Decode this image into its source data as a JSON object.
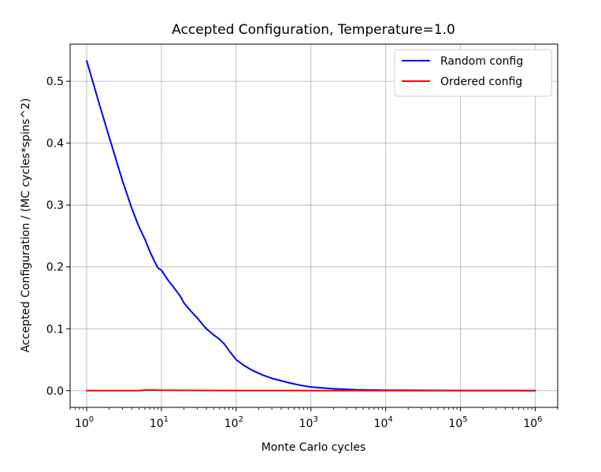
{
  "chart_data": {
    "type": "line",
    "title": "Accepted Configuration, Temperature=1.0",
    "xlabel": "Monte Carlo cycles",
    "ylabel": "Accepted Configuration / (MC cycles*spins^2)",
    "xscale": "log",
    "xlim": [
      0.6,
      2000000
    ],
    "ylim": [
      -0.027,
      0.56
    ],
    "xticks": [
      {
        "value": 1,
        "base": "10",
        "exp": "0"
      },
      {
        "value": 10,
        "base": "10",
        "exp": "1"
      },
      {
        "value": 100,
        "base": "10",
        "exp": "2"
      },
      {
        "value": 1000,
        "base": "10",
        "exp": "3"
      },
      {
        "value": 10000,
        "base": "10",
        "exp": "4"
      },
      {
        "value": 100000,
        "base": "10",
        "exp": "5"
      },
      {
        "value": 1000000,
        "base": "10",
        "exp": "6"
      }
    ],
    "yticks": [
      {
        "value": 0.0,
        "label": "0.0"
      },
      {
        "value": 0.1,
        "label": "0.1"
      },
      {
        "value": 0.2,
        "label": "0.2"
      },
      {
        "value": 0.3,
        "label": "0.3"
      },
      {
        "value": 0.4,
        "label": "0.4"
      },
      {
        "value": 0.5,
        "label": "0.5"
      }
    ],
    "grid": true,
    "legend_position": "top-right",
    "series": [
      {
        "name": "Random config",
        "color": "#0000ff",
        "points": [
          [
            1,
            0.533
          ],
          [
            1.5,
            0.46
          ],
          [
            2,
            0.41
          ],
          [
            3,
            0.34
          ],
          [
            4,
            0.295
          ],
          [
            5,
            0.265
          ],
          [
            6,
            0.245
          ],
          [
            7,
            0.225
          ],
          [
            8,
            0.21
          ],
          [
            9,
            0.198
          ],
          [
            10,
            0.195
          ],
          [
            12,
            0.18
          ],
          [
            15,
            0.165
          ],
          [
            18,
            0.152
          ],
          [
            20,
            0.142
          ],
          [
            25,
            0.128
          ],
          [
            30,
            0.118
          ],
          [
            35,
            0.108
          ],
          [
            40,
            0.1
          ],
          [
            50,
            0.09
          ],
          [
            60,
            0.083
          ],
          [
            70,
            0.075
          ],
          [
            80,
            0.065
          ],
          [
            100,
            0.05
          ],
          [
            130,
            0.04
          ],
          [
            170,
            0.032
          ],
          [
            230,
            0.025
          ],
          [
            300,
            0.02
          ],
          [
            500,
            0.013
          ],
          [
            700,
            0.009
          ],
          [
            1000,
            0.006
          ],
          [
            2000,
            0.003
          ],
          [
            4000,
            0.0015
          ],
          [
            10000,
            0.0007
          ],
          [
            100000,
            0.0002
          ],
          [
            1000000,
            0.0001
          ]
        ]
      },
      {
        "name": "Ordered config",
        "color": "#ff0000",
        "points": [
          [
            1,
            0.0
          ],
          [
            5,
            0.0
          ],
          [
            6,
            0.001
          ],
          [
            8,
            0.001
          ],
          [
            10,
            0.0008
          ],
          [
            20,
            0.0005
          ],
          [
            100,
            0.0002
          ],
          [
            1000,
            0.0001
          ],
          [
            1000000,
            0.0
          ]
        ]
      }
    ]
  }
}
